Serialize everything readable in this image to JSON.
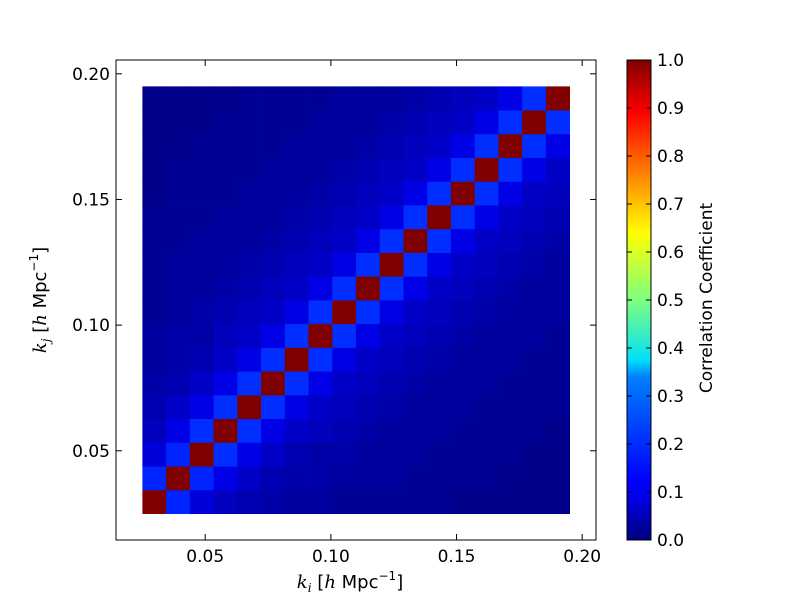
{
  "chart_data": {
    "type": "heatmap",
    "colormap": "jet",
    "xlabel": {
      "var": "k",
      "sub": "i",
      "bracket_open": "[",
      "h": "h",
      "unit": " Mpc",
      "exp": "−1",
      "bracket_close": "]"
    },
    "ylabel": {
      "var": "k",
      "sub": "j",
      "bracket_open": "[",
      "h": "h",
      "unit": " Mpc",
      "exp": "−1",
      "bracket_close": "]"
    },
    "xlim": [
      0.0145,
      0.2055
    ],
    "ylim": [
      0.0145,
      0.2055
    ],
    "xticks": [
      {
        "value": 0.05,
        "label": "0.05"
      },
      {
        "value": 0.1,
        "label": "0.10"
      },
      {
        "value": 0.15,
        "label": "0.15"
      },
      {
        "value": 0.2,
        "label": "0.20"
      }
    ],
    "yticks": [
      {
        "value": 0.05,
        "label": "0.05"
      },
      {
        "value": 0.1,
        "label": "0.10"
      },
      {
        "value": 0.15,
        "label": "0.15"
      },
      {
        "value": 0.2,
        "label": "0.20"
      }
    ],
    "grid_bins": {
      "start": 0.025,
      "stop": 0.195,
      "count": 18
    },
    "k_values": [
      0.0297,
      0.0392,
      0.0486,
      0.0581,
      0.0675,
      0.0769,
      0.0864,
      0.0958,
      0.1053,
      0.1147,
      0.1242,
      0.1336,
      0.1431,
      0.1525,
      0.1619,
      0.1714,
      0.1808,
      0.1903
    ],
    "values": [
      [
        1.0,
        0.16,
        0.09,
        0.06,
        0.05,
        0.04,
        0.03,
        0.03,
        0.02,
        0.02,
        0.02,
        0.02,
        0.02,
        0.01,
        0.01,
        0.01,
        0.01,
        0.01
      ],
      [
        0.16,
        1.0,
        0.16,
        0.1,
        0.07,
        0.05,
        0.04,
        0.04,
        0.03,
        0.03,
        0.03,
        0.02,
        0.02,
        0.02,
        0.02,
        0.01,
        0.01,
        0.01
      ],
      [
        0.09,
        0.16,
        1.0,
        0.17,
        0.1,
        0.07,
        0.05,
        0.04,
        0.04,
        0.03,
        0.03,
        0.03,
        0.02,
        0.02,
        0.02,
        0.02,
        0.01,
        0.01
      ],
      [
        0.06,
        0.1,
        0.17,
        1.0,
        0.17,
        0.1,
        0.07,
        0.06,
        0.05,
        0.04,
        0.03,
        0.03,
        0.03,
        0.02,
        0.02,
        0.02,
        0.02,
        0.01
      ],
      [
        0.05,
        0.07,
        0.1,
        0.17,
        1.0,
        0.17,
        0.1,
        0.07,
        0.06,
        0.05,
        0.04,
        0.03,
        0.03,
        0.03,
        0.02,
        0.02,
        0.02,
        0.02
      ],
      [
        0.04,
        0.05,
        0.07,
        0.1,
        0.17,
        1.0,
        0.17,
        0.1,
        0.07,
        0.06,
        0.05,
        0.04,
        0.03,
        0.03,
        0.03,
        0.02,
        0.02,
        0.02
      ],
      [
        0.03,
        0.04,
        0.05,
        0.07,
        0.1,
        0.17,
        1.0,
        0.17,
        0.1,
        0.07,
        0.06,
        0.05,
        0.04,
        0.03,
        0.03,
        0.03,
        0.02,
        0.02
      ],
      [
        0.03,
        0.04,
        0.04,
        0.06,
        0.07,
        0.1,
        0.17,
        1.0,
        0.17,
        0.1,
        0.07,
        0.06,
        0.05,
        0.04,
        0.03,
        0.03,
        0.03,
        0.02
      ],
      [
        0.02,
        0.03,
        0.04,
        0.05,
        0.06,
        0.07,
        0.1,
        0.17,
        1.0,
        0.17,
        0.1,
        0.07,
        0.06,
        0.05,
        0.04,
        0.03,
        0.03,
        0.03
      ],
      [
        0.02,
        0.03,
        0.03,
        0.04,
        0.05,
        0.06,
        0.07,
        0.1,
        0.17,
        1.0,
        0.17,
        0.1,
        0.07,
        0.06,
        0.05,
        0.04,
        0.03,
        0.03
      ],
      [
        0.02,
        0.03,
        0.03,
        0.03,
        0.04,
        0.05,
        0.06,
        0.07,
        0.1,
        0.17,
        1.0,
        0.17,
        0.1,
        0.07,
        0.06,
        0.05,
        0.04,
        0.03
      ],
      [
        0.02,
        0.02,
        0.03,
        0.03,
        0.03,
        0.04,
        0.05,
        0.06,
        0.07,
        0.1,
        0.17,
        1.0,
        0.17,
        0.1,
        0.07,
        0.06,
        0.05,
        0.04
      ],
      [
        0.02,
        0.02,
        0.02,
        0.03,
        0.03,
        0.03,
        0.04,
        0.05,
        0.06,
        0.07,
        0.1,
        0.17,
        1.0,
        0.17,
        0.1,
        0.07,
        0.06,
        0.05
      ],
      [
        0.01,
        0.02,
        0.02,
        0.02,
        0.03,
        0.03,
        0.03,
        0.04,
        0.05,
        0.06,
        0.07,
        0.1,
        0.17,
        1.0,
        0.17,
        0.1,
        0.07,
        0.06
      ],
      [
        0.01,
        0.02,
        0.02,
        0.02,
        0.02,
        0.03,
        0.03,
        0.03,
        0.04,
        0.05,
        0.06,
        0.07,
        0.1,
        0.17,
        1.0,
        0.17,
        0.1,
        0.07
      ],
      [
        0.01,
        0.01,
        0.02,
        0.02,
        0.02,
        0.02,
        0.03,
        0.03,
        0.03,
        0.04,
        0.05,
        0.06,
        0.07,
        0.1,
        0.17,
        1.0,
        0.17,
        0.1
      ],
      [
        0.01,
        0.01,
        0.01,
        0.02,
        0.02,
        0.02,
        0.02,
        0.03,
        0.03,
        0.03,
        0.04,
        0.05,
        0.06,
        0.07,
        0.1,
        0.17,
        1.0,
        0.17
      ],
      [
        0.01,
        0.01,
        0.01,
        0.01,
        0.02,
        0.02,
        0.02,
        0.02,
        0.03,
        0.03,
        0.03,
        0.04,
        0.05,
        0.06,
        0.07,
        0.1,
        0.17,
        1.0
      ]
    ],
    "colorbar": {
      "label": "Correlation Coefficient",
      "range": [
        0.0,
        1.0
      ],
      "ticks": [
        {
          "value": 0.0,
          "label": "0.0"
        },
        {
          "value": 0.1,
          "label": "0.1"
        },
        {
          "value": 0.2,
          "label": "0.2"
        },
        {
          "value": 0.3,
          "label": "0.3"
        },
        {
          "value": 0.4,
          "label": "0.4"
        },
        {
          "value": 0.5,
          "label": "0.5"
        },
        {
          "value": 0.6,
          "label": "0.6"
        },
        {
          "value": 0.7,
          "label": "0.7"
        },
        {
          "value": 0.8,
          "label": "0.8"
        },
        {
          "value": 0.9,
          "label": "0.9"
        },
        {
          "value": 1.0,
          "label": "1.0"
        }
      ]
    },
    "grid": false,
    "legend": "none"
  }
}
